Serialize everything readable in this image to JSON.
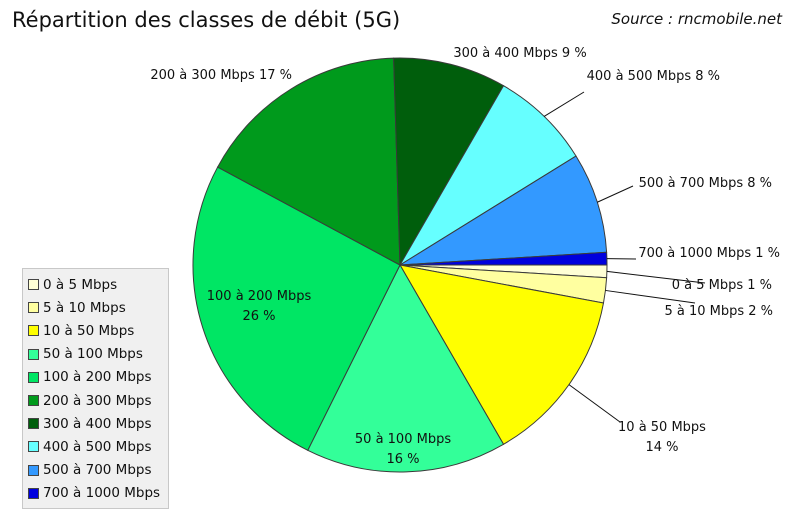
{
  "chart_data": {
    "type": "pie",
    "title": "Répartition des classes de débit (5G)",
    "source": "Source : rncmobile.net",
    "slices": [
      {
        "legend": "0 à 5 Mbps",
        "label": [
          "0 à 5 Mbps 1 %"
        ],
        "value": 1,
        "color": "#ffffd5"
      },
      {
        "legend": "5 à 10 Mbps",
        "label": [
          "5 à 10 Mbps  2 %"
        ],
        "value": 2,
        "color": "#ffffa0"
      },
      {
        "legend": "10 à 50 Mbps",
        "label": [
          "10 à 50 Mbps",
          "14 %"
        ],
        "value": 14,
        "color": "#ffff00"
      },
      {
        "legend": "50 à 100 Mbps",
        "label": [
          "50 à 100 Mbps",
          "16 %"
        ],
        "value": 16,
        "color": "#33ff99"
      },
      {
        "legend": "100 à 200 Mbps",
        "label": [
          "100 à 200 Mbps",
          "26 %"
        ],
        "value": 26,
        "color": "#00e664"
      },
      {
        "legend": "200 à 300 Mbps",
        "label": [
          "200 à 300 Mbps 17 %"
        ],
        "value": 17,
        "color": "#009a1c"
      },
      {
        "legend": "300 à 400 Mbps",
        "label": [
          "300 à 400 Mbps 9 %"
        ],
        "value": 9,
        "color": "#005e0c"
      },
      {
        "legend": "400 à 500 Mbps",
        "label": [
          "400 à 500 Mbps 8 %"
        ],
        "value": 8,
        "color": "#66ffff"
      },
      {
        "legend": "500 à 700 Mbps",
        "label": [
          "500 à 700 Mbps 8 %"
        ],
        "value": 8,
        "color": "#3399ff"
      },
      {
        "legend": "700 à 1000 Mbps",
        "label": [
          "700 à 1000 Mbps  1 %"
        ],
        "value": 1,
        "color": "#0000dd"
      }
    ]
  }
}
